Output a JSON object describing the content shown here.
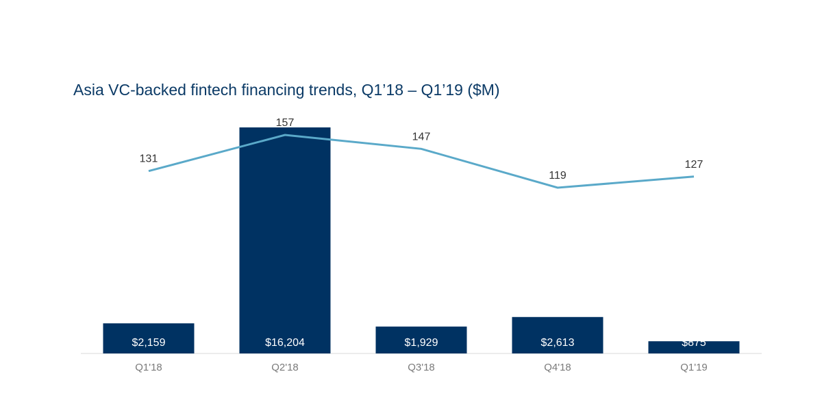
{
  "chart_data": {
    "type": "bar",
    "title": "Asia VC-backed fintech financing trends, Q1’18 – Q1’19 ($M)",
    "categories": [
      "Q1'18",
      "Q2'18",
      "Q3'18",
      "Q4'18",
      "Q1'19"
    ],
    "series": [
      {
        "type": "bar",
        "values": [
          2159,
          16204,
          1929,
          2613,
          875
        ],
        "labels": [
          "$2,159",
          "$16,204",
          "$1,929",
          "$2,613",
          "$875"
        ],
        "color": "#003262"
      },
      {
        "type": "line",
        "values": [
          131,
          157,
          147,
          119,
          127
        ],
        "labels": [
          "131",
          "157",
          "147",
          "119",
          "127"
        ],
        "color": "#5aa9c9"
      }
    ],
    "grid": false,
    "legend": "none"
  }
}
